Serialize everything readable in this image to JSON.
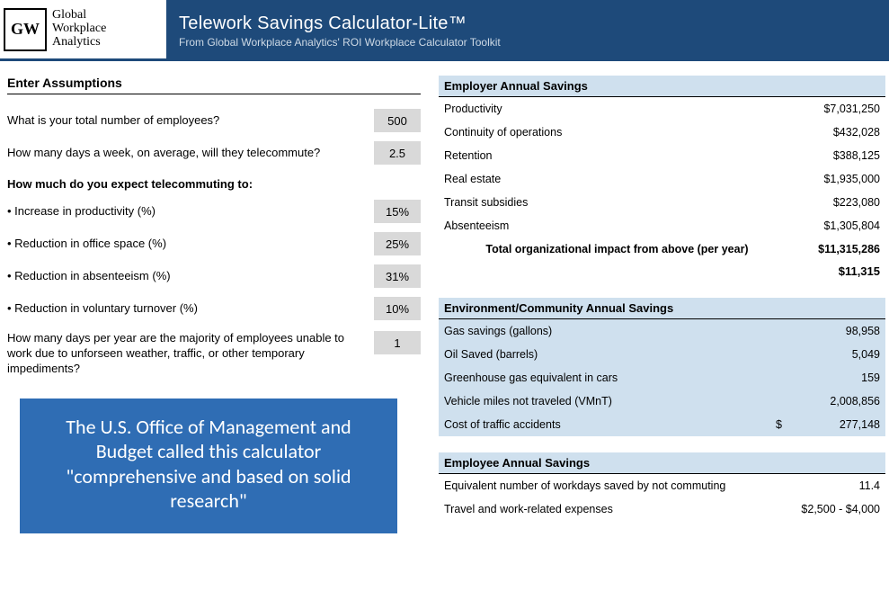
{
  "header": {
    "brand_line1": "Global",
    "brand_line2": "Workplace",
    "brand_line3": "Analytics",
    "logo_initials": "GW",
    "title": "Telework Savings Calculator-Lite™",
    "subtitle": "From Global Workplace Analytics' ROI Workplace Calculator Toolkit",
    "bg_color": "#1e4a7a"
  },
  "assumptions": {
    "heading": "Enter Assumptions",
    "q_employees": "What is your total number of employees?",
    "q_days": "How many days a week, on average, will they telecommute?",
    "subhead": "How much do you expect telecommuting to:",
    "q_productivity": "Increase in productivity (%)",
    "q_office": "Reduction in office space (%)",
    "q_absent": "Reduction in absenteeism (%)",
    "q_turnover": "Reduction in voluntary turnover (%)",
    "q_impediments": "How many days per year are the majority of employees unable to work due to unforseen weather, traffic, or other temporary impediments?",
    "v_employees": "500",
    "v_days": "2.5",
    "v_productivity": "15%",
    "v_office": "25%",
    "v_absent": "31%",
    "v_turnover": "10%",
    "v_impediments": "1",
    "input_bg": "#d9d9d9"
  },
  "quote": {
    "text": "The U.S. Office of Management and Budget called this calculator \"comprehensive and based on solid research\"",
    "bg_color": "#2f6db4",
    "font_size": 22
  },
  "employer": {
    "heading": "Employer Annual Savings",
    "rows": [
      {
        "label": "Productivity",
        "value": "$7,031,250"
      },
      {
        "label": "Continuity of operations",
        "value": "$432,028"
      },
      {
        "label": "Retention",
        "value": "$388,125"
      },
      {
        "label": "Real estate",
        "value": "$1,935,000"
      },
      {
        "label": "Transit subsidies",
        "value": "$223,080"
      },
      {
        "label": "Absenteeism",
        "value": "$1,305,804"
      }
    ],
    "total_label": "Total organizational impact from above (per year)",
    "total_value": "$11,315,286",
    "secondary_value": "$11,315"
  },
  "environment": {
    "heading": "Environment/Community Annual Savings",
    "panel_bg": "#cfe0ee",
    "rows": [
      {
        "label": "Gas savings (gallons)",
        "value": "98,958"
      },
      {
        "label": "Oil Saved (barrels)",
        "value": "5,049"
      },
      {
        "label": "Greenhouse gas equivalent in cars",
        "value": "159"
      },
      {
        "label": "Vehicle miles not traveled (VMnT)",
        "value": "2,008,856"
      },
      {
        "label": "Cost of traffic accidents",
        "prefix": "$",
        "value": "277,148"
      }
    ]
  },
  "employee": {
    "heading": "Employee Annual Savings",
    "rows": [
      {
        "label": "Equivalent number of workdays saved by not commuting",
        "value": "11.4"
      },
      {
        "label": "Travel and work-related expenses",
        "value": "$2,500 - $4,000"
      }
    ]
  }
}
